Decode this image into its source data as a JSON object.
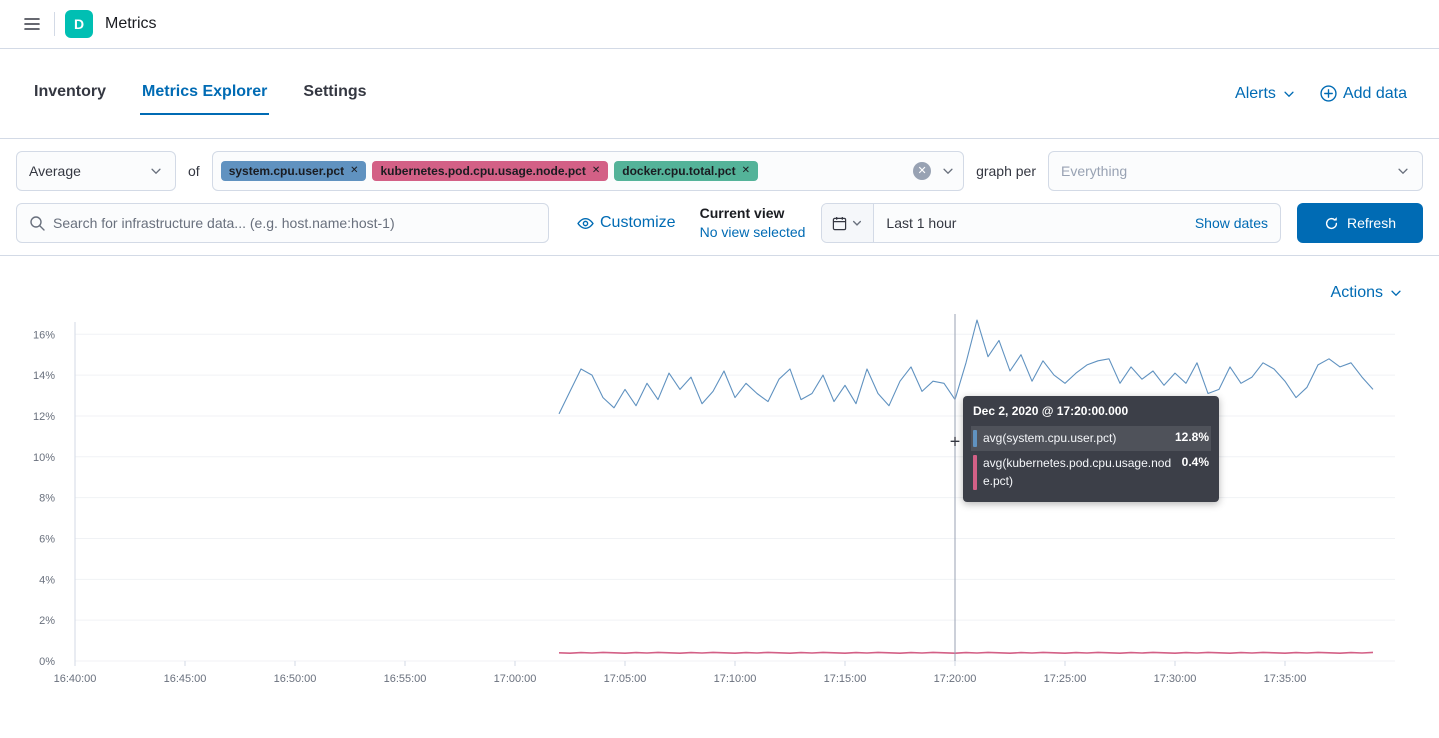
{
  "header": {
    "app_badge": "D",
    "title": "Metrics"
  },
  "tabs": [
    {
      "label": "Inventory"
    },
    {
      "label": "Metrics Explorer"
    },
    {
      "label": "Settings"
    }
  ],
  "header_actions": {
    "alerts_label": "Alerts",
    "add_data_label": "Add data"
  },
  "filters": {
    "aggregation": "Average",
    "of_label": "of",
    "metrics": [
      {
        "label": "system.cpu.user.pct",
        "color": "#6092C0"
      },
      {
        "label": "kubernetes.pod.cpu.usage.node.pct",
        "color": "#D36086"
      },
      {
        "label": "docker.cpu.total.pct",
        "color": "#54B399"
      }
    ],
    "graph_per_label": "graph per",
    "graph_per_placeholder": "Everything"
  },
  "toolbar": {
    "search_placeholder": "Search for infrastructure data... (e.g. host.name:host-1)",
    "customize_label": "Customize",
    "current_view_label": "Current view",
    "current_view_value": "No view selected",
    "time_range": "Last 1 hour",
    "show_dates_label": "Show dates",
    "refresh_label": "Refresh"
  },
  "chart_section": {
    "actions_label": "Actions"
  },
  "tooltip": {
    "title": "Dec 2, 2020 @ 17:20:00.000",
    "rows": [
      {
        "label": "avg(system.cpu.user.pct)",
        "value": "12.8%",
        "color": "#6092C0"
      },
      {
        "label": "avg(kubernetes.pod.cpu.usage.node.pct)",
        "value": "0.4%",
        "color": "#D36086"
      }
    ]
  },
  "icons": [
    "hamburger-menu-icon",
    "search-icon",
    "eye-icon",
    "calendar-icon",
    "chevron-down-icon",
    "refresh-icon",
    "plus-circle-icon",
    "clear-circle-icon",
    "crosshair-cursor"
  ],
  "chart_data": {
    "type": "line",
    "title": "",
    "xlabel": "",
    "ylabel": "",
    "x_domain": [
      "16:40:00",
      "17:40:00"
    ],
    "x_ticks": [
      "16:40:00",
      "16:45:00",
      "16:50:00",
      "16:55:00",
      "17:00:00",
      "17:05:00",
      "17:10:00",
      "17:15:00",
      "17:20:00",
      "17:25:00",
      "17:30:00",
      "17:35:00"
    ],
    "y_tick_values": [
      0,
      2,
      4,
      6,
      8,
      10,
      12,
      14,
      16
    ],
    "y_ticks": [
      "0%",
      "2%",
      "4%",
      "6%",
      "8%",
      "10%",
      "12%",
      "14%",
      "16%"
    ],
    "ylim": [
      0,
      16.6
    ],
    "grid": "horizontal-faint",
    "legend": "none",
    "x_start": "17:02:00",
    "x_interval_seconds": 30,
    "crosshair_time": "17:20:00",
    "cursor_value_pct": 10.7,
    "series": [
      {
        "name": "avg(system.cpu.user.pct)",
        "color": "#6092C0",
        "stroke_width": 1.1,
        "values": [
          12.1,
          13.2,
          14.3,
          14.0,
          12.9,
          12.4,
          13.3,
          12.5,
          13.6,
          12.8,
          14.1,
          13.3,
          13.9,
          12.6,
          13.2,
          14.2,
          12.9,
          13.6,
          13.1,
          12.7,
          13.8,
          14.3,
          12.8,
          13.1,
          14.0,
          12.7,
          13.5,
          12.6,
          14.3,
          13.1,
          12.5,
          13.7,
          14.4,
          13.2,
          13.7,
          13.6,
          12.8,
          14.6,
          16.7,
          14.9,
          15.7,
          14.2,
          15.0,
          13.7,
          14.7,
          14.0,
          13.6,
          14.1,
          14.5,
          14.7,
          14.8,
          13.6,
          14.4,
          13.8,
          14.2,
          13.5,
          14.1,
          13.6,
          14.6,
          13.1,
          13.3,
          14.4,
          13.6,
          13.9,
          14.6,
          14.3,
          13.7,
          12.9,
          13.4,
          14.5,
          14.8,
          14.4,
          14.6,
          13.9,
          13.3
        ]
      },
      {
        "name": "avg(kubernetes.pod.cpu.usage.node.pct)",
        "color": "#D36086",
        "stroke_width": 1.6,
        "values": [
          0.4,
          0.38,
          0.41,
          0.39,
          0.42,
          0.4,
          0.38,
          0.41,
          0.39,
          0.42,
          0.4,
          0.38,
          0.41,
          0.39,
          0.42,
          0.4,
          0.38,
          0.41,
          0.39,
          0.42,
          0.4,
          0.38,
          0.41,
          0.39,
          0.42,
          0.4,
          0.38,
          0.41,
          0.39,
          0.42,
          0.4,
          0.38,
          0.41,
          0.39,
          0.42,
          0.4,
          0.38,
          0.41,
          0.39,
          0.42,
          0.4,
          0.38,
          0.41,
          0.39,
          0.42,
          0.4,
          0.38,
          0.41,
          0.39,
          0.42,
          0.4,
          0.38,
          0.41,
          0.39,
          0.42,
          0.4,
          0.38,
          0.41,
          0.39,
          0.42,
          0.4,
          0.38,
          0.41,
          0.39,
          0.42,
          0.4,
          0.38,
          0.41,
          0.39,
          0.42,
          0.4,
          0.38,
          0.41,
          0.39,
          0.42
        ]
      }
    ]
  }
}
